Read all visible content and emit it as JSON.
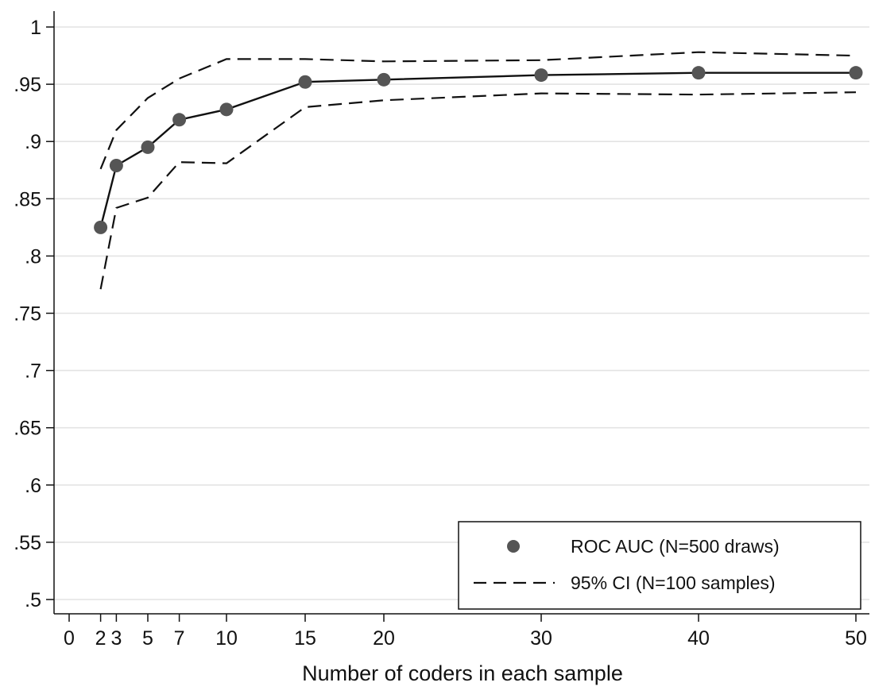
{
  "chart_data": {
    "type": "line",
    "title": "",
    "xlabel": "Number of coders in each sample",
    "ylabel": "",
    "xlim": [
      0,
      50
    ],
    "ylim": [
      0.5,
      1
    ],
    "x_ticks": [
      0,
      2,
      3,
      5,
      7,
      10,
      15,
      20,
      30,
      40,
      50
    ],
    "x_tick_labels": [
      "0",
      "2",
      "3",
      "5",
      "7",
      "10",
      "15",
      "20",
      "30",
      "40",
      "50"
    ],
    "y_ticks": [
      0.5,
      0.55,
      0.6,
      0.65,
      0.7,
      0.75,
      0.8,
      0.85,
      0.9,
      0.95,
      1
    ],
    "y_tick_labels": [
      ".5",
      ".55",
      ".6",
      ".65",
      ".7",
      ".75",
      ".8",
      ".85",
      ".9",
      ".95",
      "1"
    ],
    "grid": "horizontal",
    "legend_position": "bottom-right",
    "x": [
      2,
      3,
      5,
      7,
      10,
      15,
      20,
      30,
      40,
      50
    ],
    "series": [
      {
        "name": "ROC AUC (N=500 draws)",
        "style": "solid-line-with-markers",
        "color": "#555555",
        "values": [
          0.825,
          0.879,
          0.895,
          0.919,
          0.928,
          0.952,
          0.954,
          0.958,
          0.96,
          0.96
        ]
      },
      {
        "name": "95% CI (N=100 samples)",
        "style": "dashed",
        "color": "#111111",
        "bound": "upper",
        "values": [
          0.876,
          0.91,
          0.938,
          0.955,
          0.972,
          0.972,
          0.97,
          0.971,
          0.978,
          0.975
        ]
      },
      {
        "name": "",
        "style": "dashed",
        "color": "#111111",
        "bound": "lower",
        "values": [
          0.771,
          0.842,
          0.851,
          0.882,
          0.881,
          0.93,
          0.936,
          0.942,
          0.941,
          0.943
        ]
      }
    ]
  }
}
